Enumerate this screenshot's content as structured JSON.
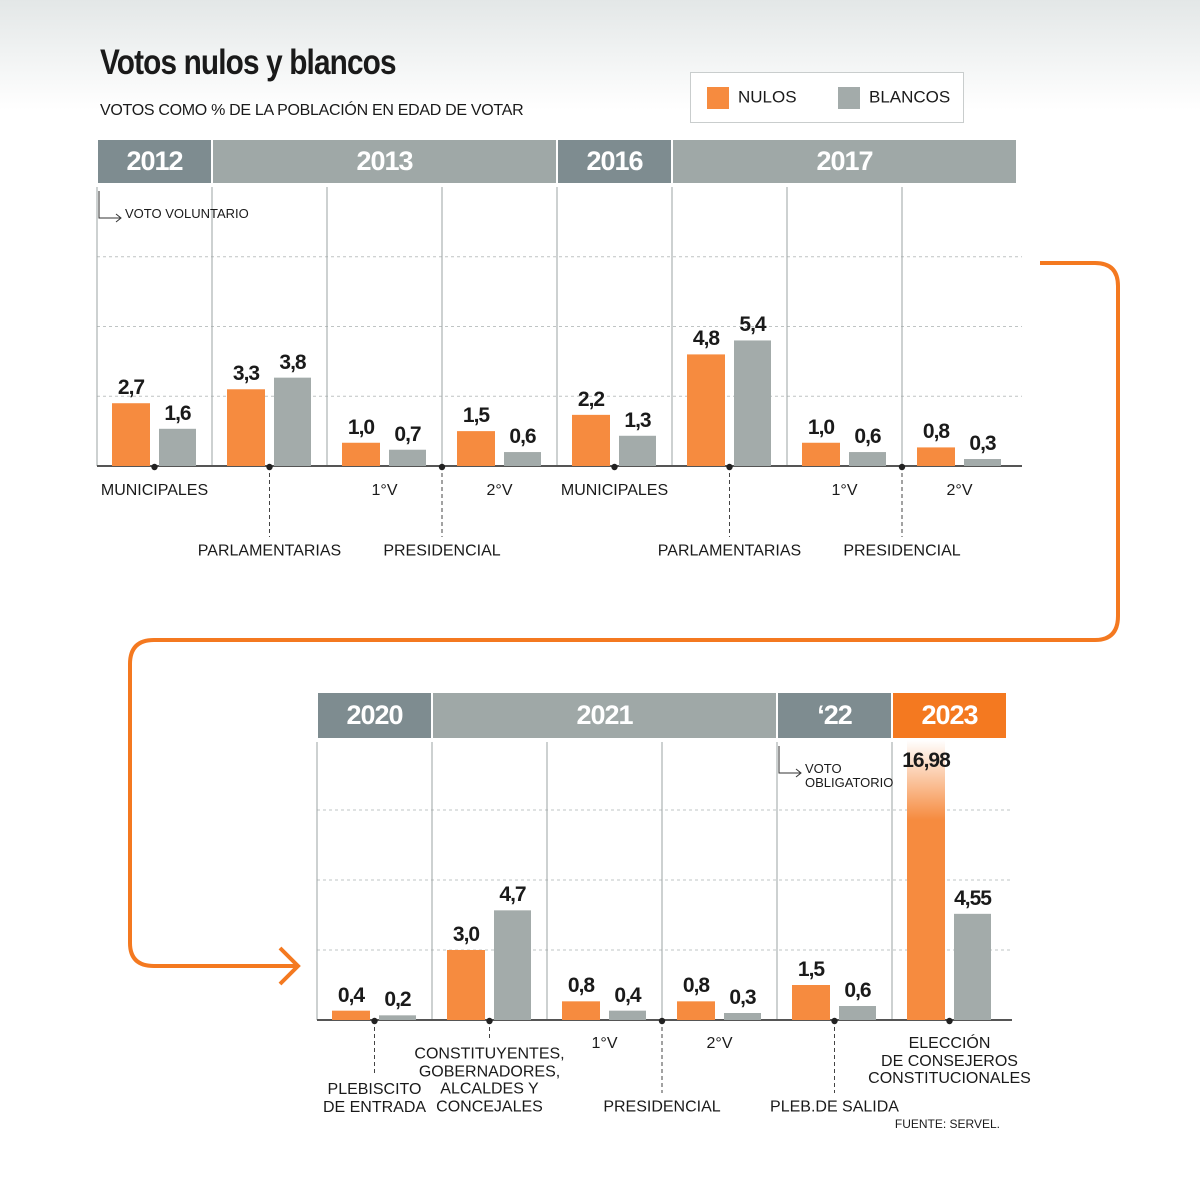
{
  "title": "Votos nulos y blancos",
  "subtitle": "VOTOS COMO % DE LA POBLACIÓN EN EDAD DE VOTAR",
  "source": "FUENTE: SERVEL.",
  "chart_data": [
    {
      "type": "bar",
      "year_headers": [
        {
          "label": "2012",
          "elections": 1,
          "color": "#7e8c90",
          "note": "VOTO VOLUNTARIO"
        },
        {
          "label": "2013",
          "elections": 3,
          "color": "#9fa8a7"
        },
        {
          "label": "2016",
          "elections": 1,
          "color": "#7e8c90"
        },
        {
          "label": "2017",
          "elections": 3,
          "color": "#9fa8a7"
        }
      ],
      "categories": [
        "MUNICIPALES",
        null,
        "1°V",
        "2°V",
        "MUNICIPALES",
        null,
        "1°V",
        "2°V"
      ],
      "lower_labels": [
        null,
        "PARLAMENTARIAS",
        "PRESIDENCIAL",
        null,
        null,
        "PARLAMENTARIAS",
        "PRESIDENCIAL",
        null
      ],
      "series": [
        {
          "name": "NULOS",
          "color": "#f68b3f",
          "values": [
            2.7,
            3.3,
            1.0,
            1.5,
            2.2,
            4.8,
            1.0,
            0.8
          ],
          "value_labels": [
            "2,7",
            "3,3",
            "1,0",
            "1,5",
            "2,2",
            "4,8",
            "1,0",
            "0,8"
          ]
        },
        {
          "name": "BLANCOS",
          "color": "#a3abaa",
          "values": [
            1.6,
            3.8,
            0.7,
            0.6,
            1.3,
            5.4,
            0.6,
            0.3
          ],
          "value_labels": [
            "1,6",
            "3,8",
            "0,7",
            "0,6",
            "1,3",
            "5,4",
            "0,6",
            "0,3"
          ]
        }
      ],
      "ylim": [
        0,
        12
      ],
      "yticks": [
        0,
        3,
        6,
        9
      ],
      "grid": true
    },
    {
      "type": "bar",
      "year_headers": [
        {
          "label": "2020",
          "elections": 1,
          "color": "#7e8c90"
        },
        {
          "label": "2021",
          "elections": 3,
          "color": "#9fa8a7"
        },
        {
          "label": "‘22",
          "elections": 1,
          "color": "#7e8c90",
          "note": "VOTO\nOBLIGATORIO"
        },
        {
          "label": "2023",
          "elections": 1,
          "color": "#f47920"
        }
      ],
      "categories": [
        null,
        null,
        "1°V",
        "2°V",
        null,
        "ELECCIÓN\nDE CONSEJEROS\nCONSTITUCIONALES"
      ],
      "lower_labels": [
        "PLEBISCITO\nDE ENTRADA",
        "CONSTITUYENTES,\nGOBERNADORES,\nALCALDES Y\nCONCEJALES",
        "PRESIDENCIAL",
        null,
        "PLEB.DE SALIDA",
        null
      ],
      "series": [
        {
          "name": "NULOS",
          "color": "#f68b3f",
          "values": [
            0.4,
            3.0,
            0.8,
            0.8,
            1.5,
            16.98
          ],
          "value_labels": [
            "0,4",
            "3,0",
            "0,8",
            "0,8",
            "1,5",
            "16,98"
          ]
        },
        {
          "name": "BLANCOS",
          "color": "#a3abaa",
          "values": [
            0.2,
            4.7,
            0.4,
            0.3,
            0.6,
            4.55
          ],
          "value_labels": [
            "0,2",
            "4,7",
            "0,4",
            "0,3",
            "0,6",
            "4,55"
          ]
        }
      ],
      "ylim": [
        0,
        12
      ],
      "yticks": [
        0,
        3,
        6,
        9
      ],
      "grid": true
    }
  ]
}
